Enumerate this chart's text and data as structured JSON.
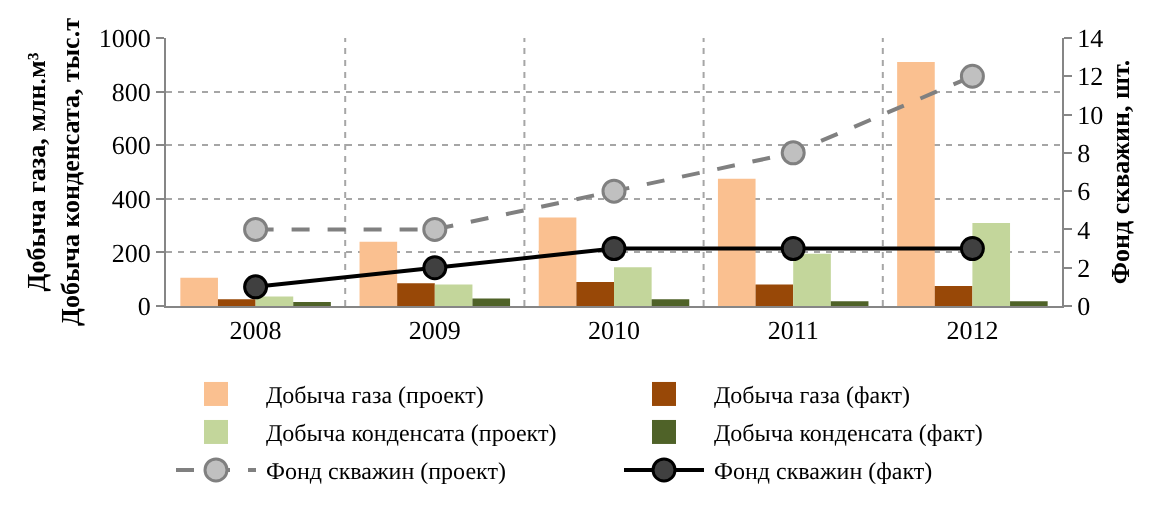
{
  "chart_data": {
    "type": "bar",
    "ylabel": "Добыча газа, млн.м³\nДобыча конденсата, тыс.т",
    "y2label": "Фонд скважин, шт.",
    "categories": [
      "2008",
      "2009",
      "2010",
      "2011",
      "2012"
    ],
    "series": [
      {
        "name": "Добыча газа (проект)",
        "color": "#fac090",
        "values": [
          105,
          240,
          330,
          475,
          910
        ]
      },
      {
        "name": "Добыча газа (факт)",
        "color": "#984807",
        "values": [
          25,
          85,
          90,
          80,
          75
        ]
      },
      {
        "name": "Добыча конденсата (проект)",
        "color": "#c3d69b",
        "values": [
          35,
          80,
          145,
          195,
          310
        ]
      },
      {
        "name": "Добыча конденсата (факт)",
        "color": "#4f6228",
        "values": [
          12,
          28,
          25,
          18,
          18
        ]
      },
      {
        "name": "Фонд скважин (проект)",
        "type": "line",
        "axis": "y2",
        "color": "#808080",
        "line_style": "dashed",
        "marker": "circle",
        "values": [
          4,
          4,
          6,
          8,
          12
        ]
      },
      {
        "name": "Фонд скважин (факт)",
        "type": "line",
        "axis": "y2",
        "color": "#000000",
        "line_style": "solid",
        "marker": "circle",
        "values": [
          1,
          2,
          3,
          3,
          3
        ]
      }
    ],
    "ylim": [
      0,
      1000
    ],
    "yticks": [
      0,
      200,
      400,
      600,
      800,
      1000
    ],
    "y2lim": [
      0,
      14
    ],
    "y2ticks": [
      0,
      2,
      4,
      6,
      8,
      10,
      12,
      14
    ],
    "grid": true,
    "legend": "bottom"
  }
}
